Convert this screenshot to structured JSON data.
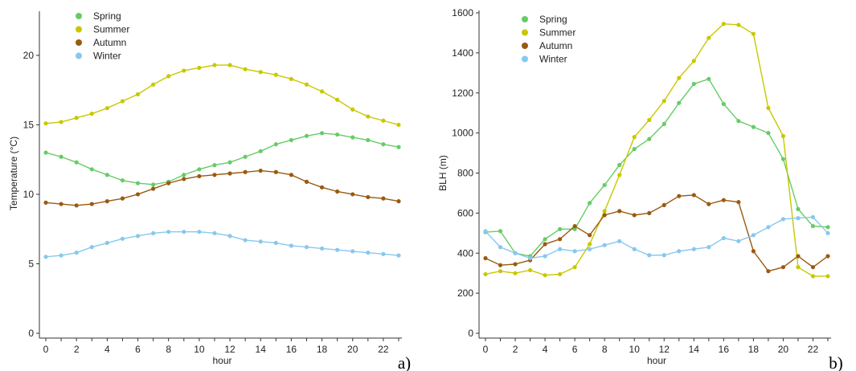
{
  "chart_data": [
    {
      "type": "line",
      "panel_label": "a)",
      "xlabel": "hour",
      "ylabel": "Temperature (°C)",
      "xlim": [
        0,
        23
      ],
      "ylim": [
        0,
        23
      ],
      "x_ticks": [
        0,
        2,
        4,
        6,
        8,
        10,
        12,
        14,
        16,
        18,
        20,
        22
      ],
      "y_ticks": [
        0,
        5,
        10,
        15,
        20
      ],
      "grid": false,
      "legend_position": "top-left",
      "x": [
        0,
        1,
        2,
        3,
        4,
        5,
        6,
        7,
        8,
        9,
        10,
        11,
        12,
        13,
        14,
        15,
        16,
        17,
        18,
        19,
        20,
        21,
        22,
        23
      ],
      "series": [
        {
          "name": "Spring",
          "color": "#66cc66",
          "values": [
            13.0,
            12.7,
            12.3,
            11.8,
            11.4,
            11.0,
            10.8,
            10.7,
            10.9,
            11.4,
            11.8,
            12.1,
            12.3,
            12.7,
            13.1,
            13.6,
            13.9,
            14.2,
            14.4,
            14.3,
            14.1,
            13.9,
            13.6,
            13.4
          ]
        },
        {
          "name": "Summer",
          "color": "#c8c800",
          "values": [
            15.1,
            15.2,
            15.5,
            15.8,
            16.2,
            16.7,
            17.2,
            17.9,
            18.5,
            18.9,
            19.1,
            19.3,
            19.3,
            19.0,
            18.8,
            18.6,
            18.3,
            17.9,
            17.4,
            16.8,
            16.1,
            15.6,
            15.3,
            15.0
          ]
        },
        {
          "name": "Autumn",
          "color": "#9a5a10",
          "values": [
            9.4,
            9.3,
            9.2,
            9.3,
            9.5,
            9.7,
            10.0,
            10.4,
            10.8,
            11.1,
            11.3,
            11.4,
            11.5,
            11.6,
            11.7,
            11.6,
            11.4,
            10.9,
            10.5,
            10.2,
            10.0,
            9.8,
            9.7,
            9.5
          ]
        },
        {
          "name": "Winter",
          "color": "#88c8ee",
          "values": [
            5.5,
            5.6,
            5.8,
            6.2,
            6.5,
            6.8,
            7.0,
            7.2,
            7.3,
            7.3,
            7.3,
            7.2,
            7.0,
            6.7,
            6.6,
            6.5,
            6.3,
            6.2,
            6.1,
            6.0,
            5.9,
            5.8,
            5.7,
            5.6
          ]
        }
      ]
    },
    {
      "type": "line",
      "panel_label": "b)",
      "xlabel": "hour",
      "ylabel": "BLH (m)",
      "xlim": [
        0,
        23
      ],
      "ylim": [
        0,
        1600
      ],
      "x_ticks": [
        0,
        2,
        4,
        6,
        8,
        10,
        12,
        14,
        16,
        18,
        20,
        22
      ],
      "y_ticks": [
        0,
        200,
        400,
        600,
        800,
        1000,
        1200,
        1400,
        1600
      ],
      "grid": false,
      "legend_position": "top-left",
      "x": [
        0,
        1,
        2,
        3,
        4,
        5,
        6,
        7,
        8,
        9,
        10,
        11,
        12,
        13,
        14,
        15,
        16,
        17,
        18,
        19,
        20,
        21,
        22,
        23
      ],
      "series": [
        {
          "name": "Spring",
          "color": "#66cc66",
          "values": [
            505,
            510,
            400,
            385,
            470,
            520,
            520,
            650,
            740,
            840,
            920,
            970,
            1045,
            1150,
            1245,
            1270,
            1145,
            1060,
            1030,
            1000,
            870,
            620,
            535,
            530
          ]
        },
        {
          "name": "Summer",
          "color": "#c8c800",
          "values": [
            295,
            310,
            300,
            315,
            290,
            295,
            330,
            445,
            610,
            790,
            980,
            1065,
            1160,
            1275,
            1360,
            1475,
            1545,
            1540,
            1495,
            1125,
            985,
            330,
            285,
            285
          ]
        },
        {
          "name": "Autumn",
          "color": "#9a5a10",
          "values": [
            375,
            340,
            345,
            365,
            445,
            470,
            535,
            490,
            590,
            610,
            590,
            600,
            640,
            685,
            690,
            645,
            665,
            655,
            410,
            310,
            330,
            385,
            330,
            385
          ]
        },
        {
          "name": "Winter",
          "color": "#88c8ee",
          "values": [
            510,
            430,
            400,
            375,
            385,
            420,
            410,
            420,
            440,
            460,
            420,
            390,
            390,
            410,
            420,
            430,
            475,
            460,
            490,
            530,
            570,
            575,
            580,
            500
          ]
        }
      ]
    }
  ]
}
